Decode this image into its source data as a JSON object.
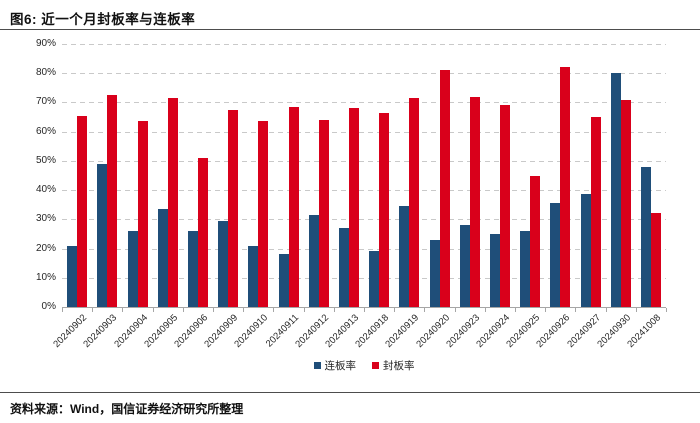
{
  "title": "图6: 近一个月封板率与连板率",
  "source": "资料来源：Wind，国信证券经济研究所整理",
  "colors": {
    "lianban_blue": "#1F4E79",
    "fengban_red": "#D9001B",
    "gridline": "#c9c9c9",
    "axis": "#a6a6a6",
    "rule": "#4d4d4d"
  },
  "legend": [
    {
      "label": "连板率",
      "color": "#1F4E79"
    },
    {
      "label": "封板率",
      "color": "#D9001B"
    }
  ],
  "chart_data": {
    "type": "bar",
    "title": "近一个月封板率与连板率",
    "categories": [
      "20240902",
      "20240903",
      "20240904",
      "20240905",
      "20240906",
      "20240909",
      "20240910",
      "20240911",
      "20240912",
      "20240913",
      "20240918",
      "20240919",
      "20240920",
      "20240923",
      "20240924",
      "20240925",
      "20240926",
      "20240927",
      "20240930",
      "20241008"
    ],
    "series": [
      {
        "name": "连板率",
        "color": "#1F4E79",
        "values": [
          21,
          49,
          26,
          33.5,
          26,
          29.5,
          21,
          18,
          31.5,
          27,
          19,
          34.5,
          23,
          28,
          25,
          26,
          35.5,
          38.5,
          80,
          48
        ]
      },
      {
        "name": "封板率",
        "color": "#D9001B",
        "values": [
          65.5,
          72.5,
          63.5,
          71.5,
          51,
          67.5,
          63.5,
          68.5,
          64,
          68,
          66.5,
          71.5,
          81,
          72,
          69,
          45,
          82,
          65,
          71,
          32
        ]
      }
    ],
    "ylabel": "",
    "xlabel": "",
    "ylim": [
      0,
      90
    ],
    "ytick_step": 10,
    "ytick_format": "percent",
    "grid": "horizontal-dashed",
    "legend_position": "bottom-center",
    "x_label_rotation": -45
  }
}
